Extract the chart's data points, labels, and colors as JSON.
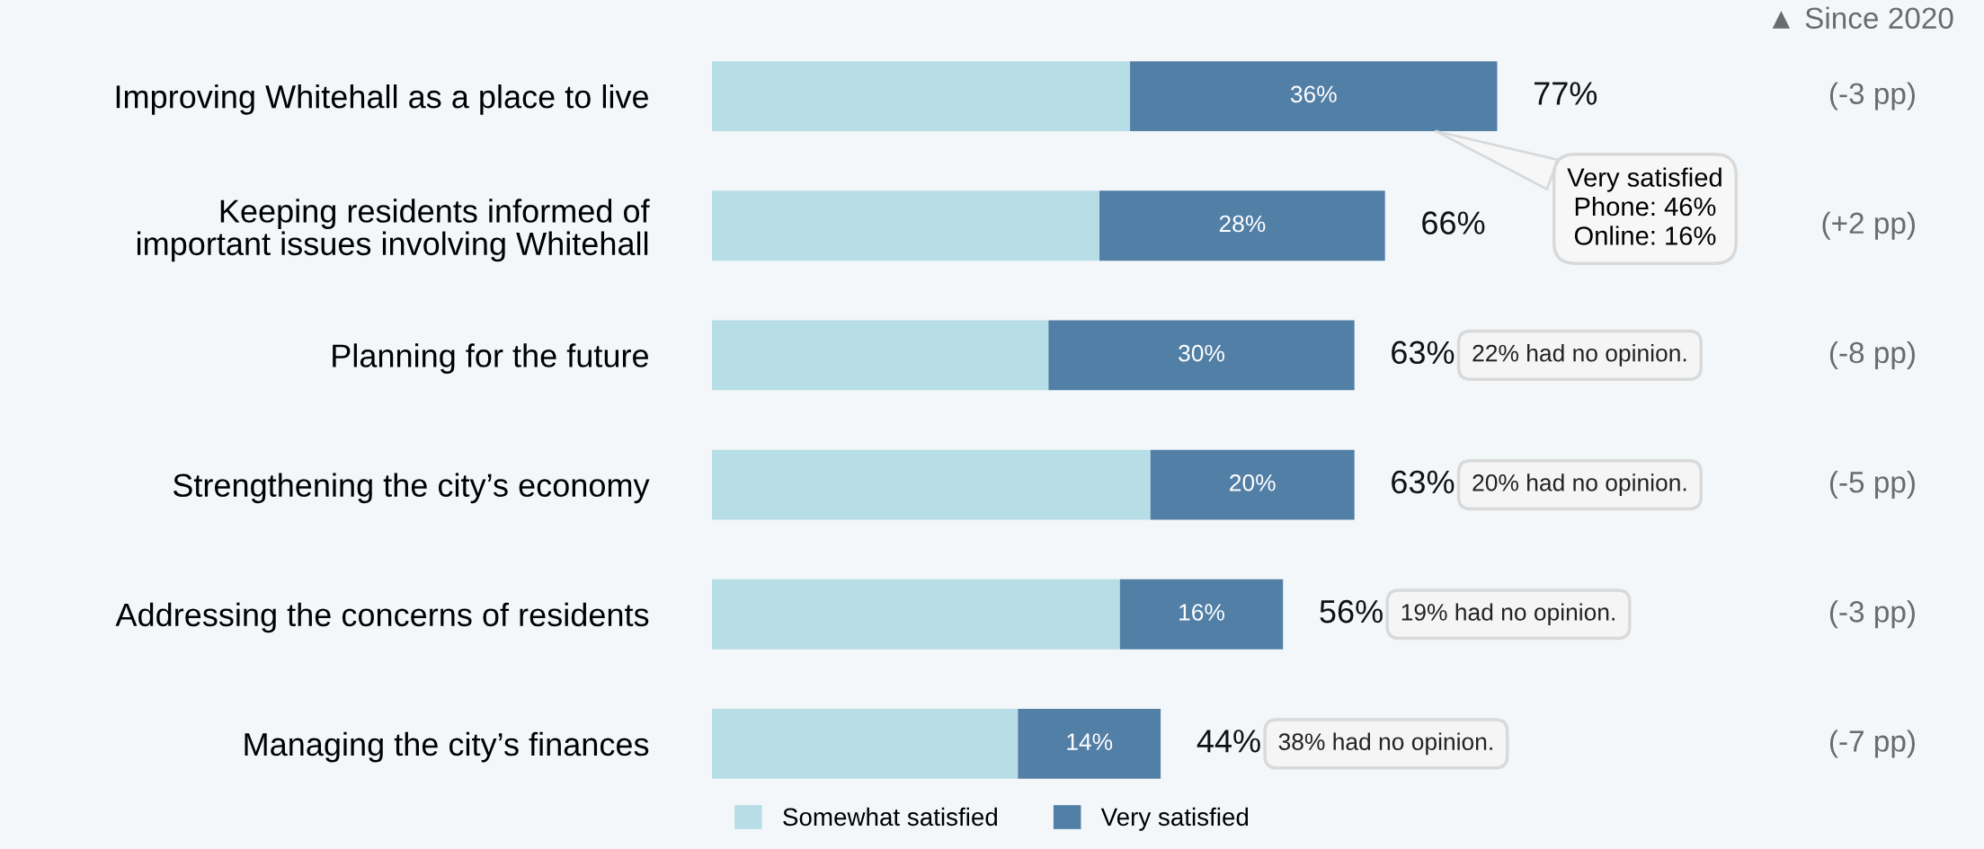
{
  "chart_data": {
    "type": "bar",
    "orientation": "horizontal",
    "stacked": true,
    "categories": [
      "Improving Whitehall as a place to live",
      "Keeping residents informed of\nimportant issues involving Whitehall",
      "Planning for the future",
      "Strengthening the city’s economy",
      "Addressing the concerns of residents",
      "Managing the city’s finances"
    ],
    "series": [
      {
        "name": "Somewhat satisfied",
        "color": "#b7dde6",
        "values": [
          41,
          38,
          33,
          43,
          40,
          30
        ]
      },
      {
        "name": "Very satisfied",
        "color": "#527fa6",
        "values": [
          36,
          28,
          30,
          20,
          16,
          14
        ],
        "value_labels": [
          "36%",
          "28%",
          "30%",
          "20%",
          "16%",
          "14%"
        ]
      }
    ],
    "totals": [
      "77%",
      "66%",
      "63%",
      "63%",
      "56%",
      "44%"
    ],
    "legend": "bottom",
    "tick_labels": "y",
    "grid": false,
    "annotations": [
      "▲ Since 2020",
      "Very satisfied\nPhone: 46%\nOnline: 16%",
      "(-3 pp)",
      "(+2 pp)",
      "22% had no opinion.",
      "(-8 pp)",
      "20% had no opinion.",
      "(-5 pp)",
      "19% had no opinion.",
      "(-3 pp)",
      "38% had no opinion.",
      "(-7 pp)"
    ]
  }
}
